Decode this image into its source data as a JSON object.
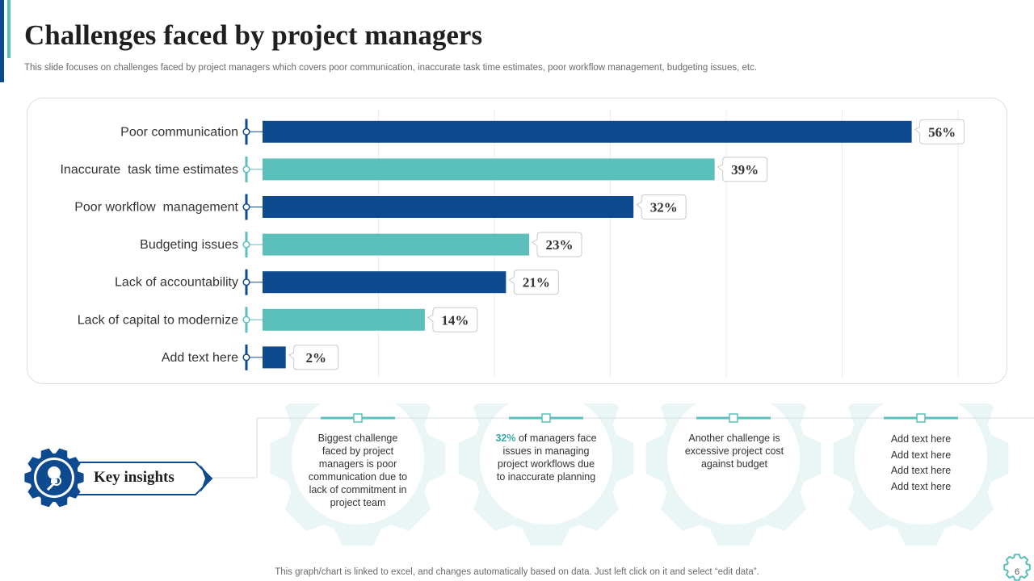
{
  "title": "Challenges faced by project managers",
  "subtitle": "This slide focuses on challenges faced by project managers which covers poor communication, inaccurate task time estimates, poor workflow management, budgeting issues, etc.",
  "chart_data": {
    "type": "bar",
    "orientation": "horizontal",
    "title": "",
    "xlabel": "",
    "ylabel": "",
    "grid": true,
    "xlim": [
      0,
      60
    ],
    "categories": [
      "Poor communication",
      "Inaccurate  task time estimates",
      "Poor workflow  management",
      "Budgeting issues",
      "Lack of accountability",
      "Lack of capital to modernize",
      "Add text here"
    ],
    "values": [
      56,
      39,
      32,
      23,
      21,
      14,
      2
    ],
    "value_labels": [
      "56%",
      "39%",
      "32%",
      "23%",
      "21%",
      "14%",
      "2%"
    ],
    "colors": [
      "#0d4a8f",
      "#5bc0bb",
      "#0d4a8f",
      "#5bc0bb",
      "#0d4a8f",
      "#5bc0bb",
      "#0d4a8f"
    ]
  },
  "insights": {
    "label": "Key insights",
    "items": [
      {
        "lines": [
          "Biggest challenge",
          "faced by project",
          "managers is poor",
          "communication due to",
          "lack of commitment in",
          "project team"
        ]
      },
      {
        "highlight": "32%",
        "lines_after_highlight": " of managers face",
        "lines": [
          "issues in managing",
          "project workflows  due",
          "to inaccurate planning"
        ]
      },
      {
        "lines": [
          "Another challenge is",
          "excessive project cost",
          "against budget"
        ]
      },
      {
        "lines": [
          "Add text here",
          "Add text here",
          "Add text here",
          "Add text here"
        ]
      }
    ]
  },
  "footer": "This graph/chart is linked to excel,  and changes automatically based on data. Just left click on it and select “edit data”.",
  "page_number": "6",
  "colors": {
    "navy": "#0d4a8f",
    "teal": "#5bc0bb",
    "light_teal": "#eaf6f6"
  }
}
